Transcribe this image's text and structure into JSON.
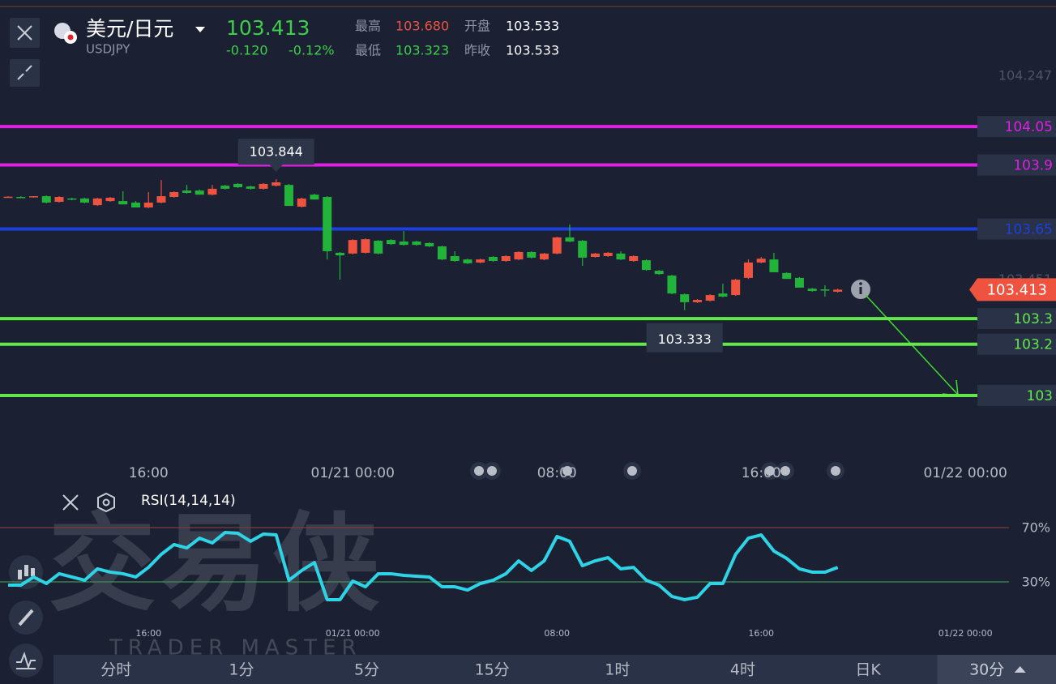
{
  "header": {
    "pair": "美元/日元",
    "symbol": "USDJPY",
    "price": "103.413",
    "change": "-0.120",
    "change_pct": "-0.12%",
    "stats": [
      {
        "label": "最高",
        "value": "103.680"
      },
      {
        "label": "开盘",
        "value": "103.533"
      },
      {
        "label": "最低",
        "value": "103.323"
      },
      {
        "label": "昨收",
        "value": "103.533"
      }
    ]
  },
  "chart_data": [
    {
      "type": "candlestick",
      "xlim": [
        -0.635,
        82.1
      ],
      "xticks": [
        {
          "value": 11,
          "label": "16:00"
        },
        {
          "value": 27,
          "label": "01/21 00:00"
        },
        {
          "value": 43,
          "label": "08:00"
        },
        {
          "value": 59,
          "label": "16:00"
        },
        {
          "value": 75,
          "label": "01/22 00:00"
        }
      ],
      "ylim": [
        102.772,
        104.544
      ],
      "yticks": [
        104.247,
        103.451
      ],
      "up_color": "#ee5340",
      "down_color": "#22b33a",
      "open": [
        103.775,
        103.775,
        103.775,
        103.778,
        103.756,
        103.769,
        103.769,
        103.743,
        103.759,
        103.759,
        103.753,
        103.734,
        103.753,
        103.775,
        103.8,
        103.8,
        103.784,
        103.819,
        103.826,
        103.816,
        103.807,
        103.819,
        103.822,
        103.737,
        103.784,
        103.775,
        103.557,
        103.554,
        103.557,
        103.604,
        103.607,
        103.601,
        103.601,
        103.595,
        103.582,
        103.544,
        103.531,
        103.519,
        103.541,
        103.525,
        103.531,
        103.56,
        103.531,
        103.554,
        103.617,
        103.604,
        103.541,
        103.544,
        103.554,
        103.525,
        103.528,
        103.487,
        103.468,
        103.395,
        103.364,
        103.37,
        103.398,
        103.392,
        103.459,
        103.519,
        103.531,
        103.478,
        103.459,
        103.417,
        103.414,
        103.405
      ],
      "high": [
        103.778,
        103.778,
        103.778,
        103.781,
        103.778,
        103.772,
        103.772,
        103.772,
        103.775,
        103.797,
        103.759,
        103.794,
        103.841,
        103.797,
        103.822,
        103.804,
        103.822,
        103.822,
        103.829,
        103.819,
        103.829,
        103.844,
        103.826,
        103.772,
        103.788,
        103.778,
        103.56,
        103.61,
        103.613,
        103.607,
        103.61,
        103.642,
        103.604,
        103.598,
        103.585,
        103.563,
        103.534,
        103.534,
        103.544,
        103.547,
        103.563,
        103.563,
        103.557,
        103.62,
        103.667,
        103.607,
        103.557,
        103.56,
        103.563,
        103.547,
        103.531,
        103.49,
        103.471,
        103.398,
        103.376,
        103.395,
        103.436,
        103.455,
        103.531,
        103.541,
        103.557,
        103.481,
        103.462,
        103.42,
        103.43,
        103.417
      ],
      "low": [
        103.772,
        103.772,
        103.772,
        103.75,
        103.753,
        103.762,
        103.75,
        103.74,
        103.756,
        103.746,
        103.734,
        103.731,
        103.75,
        103.772,
        103.788,
        103.784,
        103.781,
        103.804,
        103.81,
        103.804,
        103.804,
        103.816,
        103.74,
        103.734,
        103.765,
        103.531,
        103.452,
        103.551,
        103.554,
        103.551,
        103.588,
        103.585,
        103.585,
        103.579,
        103.528,
        103.522,
        103.513,
        103.516,
        103.522,
        103.522,
        103.528,
        103.535,
        103.528,
        103.551,
        103.598,
        103.506,
        103.538,
        103.541,
        103.528,
        103.522,
        103.487,
        103.471,
        103.395,
        103.333,
        103.361,
        103.367,
        103.383,
        103.389,
        103.455,
        103.516,
        103.481,
        103.455,
        103.421,
        103.405,
        103.386,
        103.402
      ],
      "close": [
        103.776,
        103.774,
        103.778,
        103.753,
        103.775,
        103.765,
        103.753,
        103.769,
        103.772,
        103.746,
        103.734,
        103.753,
        103.778,
        103.794,
        103.791,
        103.784,
        103.807,
        103.807,
        103.813,
        103.807,
        103.826,
        103.832,
        103.74,
        103.769,
        103.765,
        103.563,
        103.547,
        103.607,
        103.61,
        103.554,
        103.591,
        103.588,
        103.588,
        103.582,
        103.531,
        103.525,
        103.516,
        103.531,
        103.525,
        103.544,
        103.56,
        103.538,
        103.554,
        103.617,
        103.601,
        103.538,
        103.554,
        103.557,
        103.531,
        103.544,
        103.49,
        103.474,
        103.398,
        103.364,
        103.373,
        103.392,
        103.386,
        103.452,
        103.519,
        103.534,
        103.481,
        103.455,
        103.421,
        103.408,
        103.411,
        103.413
      ],
      "levels": [
        {
          "value": 104.05,
          "color": "#e11ee3"
        },
        {
          "value": 103.9,
          "color": "#e11ee3"
        },
        {
          "value": 103.65,
          "color": "#1c3fe0"
        },
        {
          "value": 103.3,
          "color": "#63e84c"
        },
        {
          "value": 103.2,
          "color": "#63e84c"
        },
        {
          "value": 103,
          "color": "#63e84c"
        }
      ]
    },
    {
      "type": "line",
      "title": "RSI(14,14,14)",
      "xlim": [
        -0.635,
        82.1
      ],
      "xticks": [
        {
          "value": 11,
          "label": "16:00"
        },
        {
          "value": 27,
          "label": "01/21 00:00"
        },
        {
          "value": 43,
          "label": "08:00"
        },
        {
          "value": 59,
          "label": "16:00"
        },
        {
          "value": 75,
          "label": "01/22 00:00"
        }
      ],
      "ylim": [
        0,
        100
      ],
      "yticks": [
        {
          "value": 70,
          "label": "70%"
        },
        {
          "value": 30,
          "label": "30%"
        }
      ],
      "grid_colors": [
        "#7a3c40",
        "#3b8f52"
      ],
      "color": "#2ed3e6",
      "values": [
        27.6,
        27.6,
        33.6,
        28.8,
        36,
        33.6,
        31.2,
        39.6,
        37.2,
        36,
        33.6,
        40.7,
        50.3,
        57.5,
        55,
        62.2,
        58.7,
        66.4,
        65.8,
        59.9,
        65.2,
        64.6,
        31.2,
        38.4,
        44.3,
        16.9,
        16.9,
        30.6,
        26.4,
        36,
        36,
        34.8,
        34.2,
        33.6,
        26.4,
        26.4,
        24,
        28.8,
        31.2,
        36,
        45.5,
        38.4,
        45.5,
        63.4,
        59.9,
        41.9,
        45.5,
        47.9,
        39.6,
        40.7,
        31.2,
        27.6,
        19.3,
        16.9,
        18.7,
        28.8,
        28.8,
        50.3,
        62.2,
        64.6,
        52.7,
        47.3,
        39.6,
        37.2,
        37.2,
        40.7
      ]
    }
  ],
  "tabs": [
    "分时",
    "1分",
    "5分",
    "15分",
    "1时",
    "4时",
    "日K",
    "30分"
  ],
  "selected_tab": 7,
  "watermark": {
    "title": "交易侠",
    "subtitle": "TRADER MASTER"
  }
}
